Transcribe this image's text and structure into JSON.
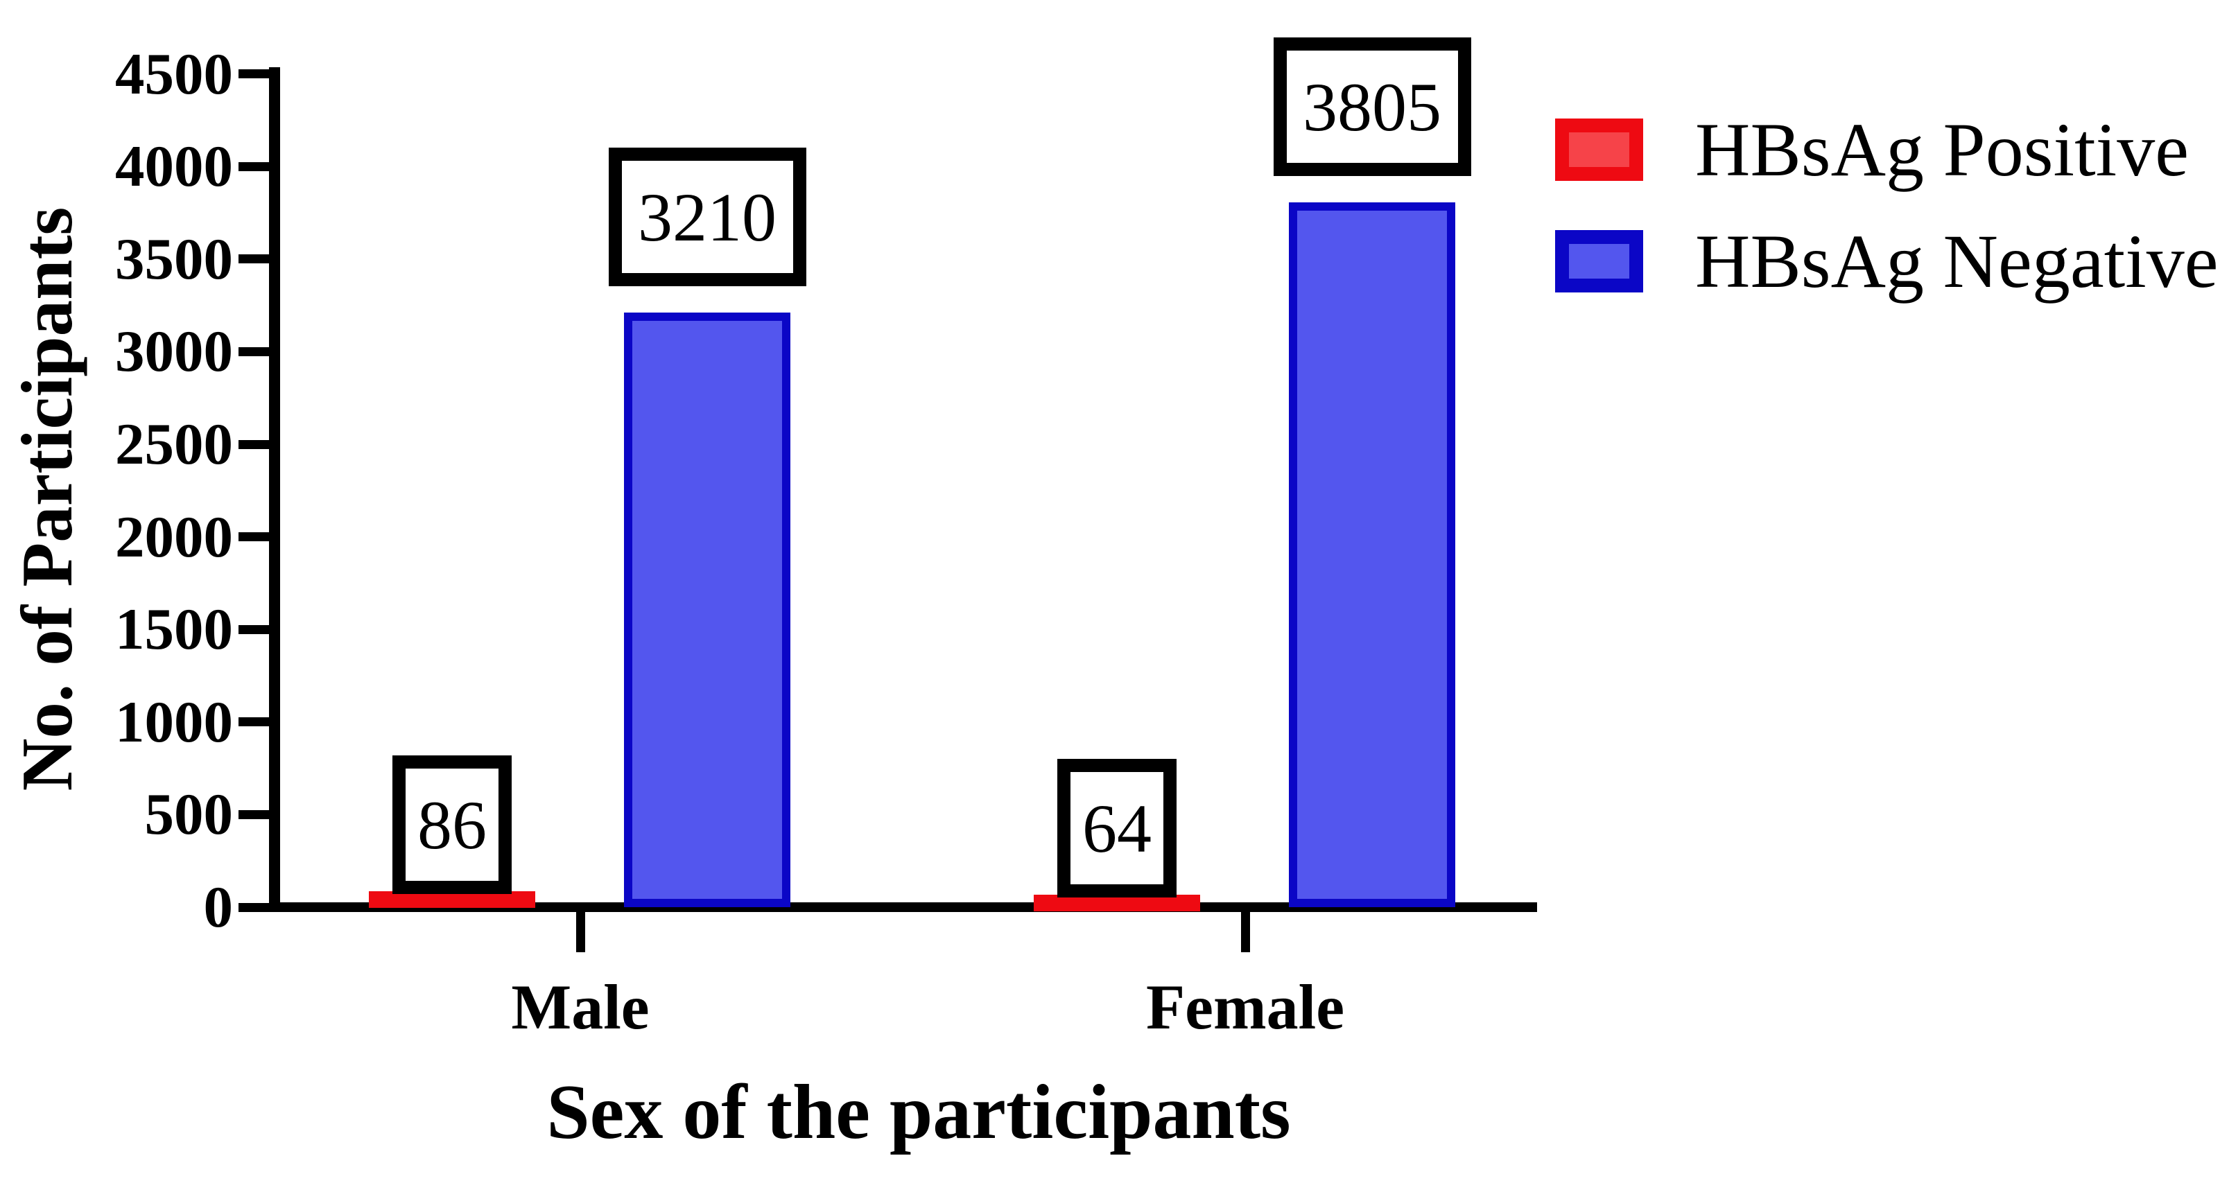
{
  "figure": {
    "kind": "grouped-bar-chart",
    "background": "#ffffff"
  },
  "y_axis": {
    "title": "No. of Participants",
    "ticks": [
      0,
      500,
      1000,
      1500,
      2000,
      2500,
      3000,
      3500,
      4000,
      4500
    ],
    "max": 4500
  },
  "x_axis": {
    "title": "Sex of the participants",
    "categories": [
      "Male",
      "Female"
    ]
  },
  "legend": {
    "items": [
      {
        "label": "HBsAg Positive",
        "stroke": "#ee0a12",
        "fill": "#f64349"
      },
      {
        "label": "HBsAg Negative",
        "stroke": "#0b06c6",
        "fill": "#5356ee"
      }
    ]
  },
  "chart_data": {
    "type": "bar",
    "categories": [
      "Male",
      "Female"
    ],
    "series": [
      {
        "name": "HBsAg Positive",
        "values": [
          86,
          64
        ],
        "stroke": "#ee0a12",
        "fill": "#f64349"
      },
      {
        "name": "HBsAg Negative",
        "values": [
          3210,
          3805
        ],
        "stroke": "#0b06c6",
        "fill": "#5356ee"
      }
    ],
    "bar_value_labels": [
      [
        "86",
        "64"
      ],
      [
        "3210",
        "3805"
      ]
    ],
    "title": "",
    "xlabel": "Sex of the participants",
    "ylabel": "No. of Participants",
    "ylim": [
      0,
      4500
    ],
    "ytick_step": 500,
    "grid": false,
    "legend_position": "top-right",
    "value_labels_boxed": true
  }
}
